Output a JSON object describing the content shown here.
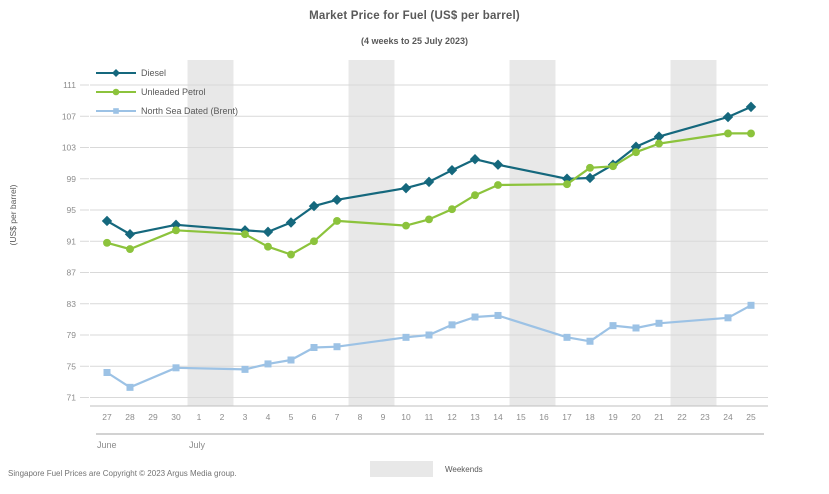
{
  "header": {
    "title": "Market Price for Fuel (US$ per barrel)",
    "subtitle": "(4 weeks to 25 July 2023)"
  },
  "footer": {
    "copyright": "Singapore Fuel Prices are Copyright © 2023 Argus Media group.",
    "weekend_legend_label": "Weekends"
  },
  "chart_data": {
    "type": "line",
    "title": "Market Price for Fuel (US$ per barrel)",
    "subtitle": "(4 weeks to 25 July 2023)",
    "xlabel": "",
    "ylabel": "(US$ per barrel)",
    "ylim": [
      71,
      111
    ],
    "ytick_step": 4,
    "yticks": [
      71,
      75,
      79,
      83,
      87,
      91,
      95,
      99,
      103,
      107,
      111
    ],
    "grid": true,
    "legend_position": "top-left",
    "categories": [
      "27",
      "28",
      "29",
      "30",
      "1",
      "2",
      "3",
      "4",
      "5",
      "6",
      "7",
      "8",
      "9",
      "10",
      "11",
      "12",
      "13",
      "14",
      "15",
      "16",
      "17",
      "18",
      "19",
      "20",
      "21",
      "22",
      "23",
      "24",
      "25"
    ],
    "month_groups": [
      {
        "label": "June",
        "start_index": 0,
        "end_index": 3
      },
      {
        "label": "July",
        "start_index": 4,
        "end_index": 28
      }
    ],
    "weekend_bands": [
      [
        4,
        5
      ],
      [
        11,
        12
      ],
      [
        18,
        19
      ],
      [
        25,
        26
      ]
    ],
    "weekend_color": "#e8e8e8",
    "gridline_color": "#d9d9d9",
    "axis_line_color": "#bfbfbf",
    "month_line_color": "#a6a6a6",
    "tick_label_color": "#8c8c8c",
    "series": [
      {
        "name": "Diesel",
        "color": "#15687d",
        "marker": "diamond",
        "values": [
          93.6,
          91.9,
          null,
          93.1,
          null,
          null,
          92.4,
          92.2,
          93.4,
          95.5,
          96.3,
          null,
          null,
          97.8,
          98.6,
          100.1,
          101.5,
          100.8,
          null,
          null,
          99.0,
          99.1,
          100.8,
          103.1,
          104.4,
          null,
          null,
          106.9,
          108.2
        ]
      },
      {
        "name": "Unleaded Petrol",
        "color": "#8cc33c",
        "marker": "circle",
        "values": [
          90.8,
          90.0,
          null,
          92.4,
          null,
          null,
          91.9,
          90.3,
          89.3,
          91.0,
          93.6,
          null,
          null,
          93.0,
          93.8,
          95.1,
          96.9,
          98.2,
          null,
          null,
          98.3,
          100.4,
          100.6,
          102.4,
          103.5,
          null,
          null,
          104.8,
          104.8
        ]
      },
      {
        "name": "North Sea Dated (Brent)",
        "color": "#9cc2e5",
        "marker": "square",
        "values": [
          74.2,
          72.3,
          null,
          74.8,
          null,
          null,
          74.6,
          75.3,
          75.8,
          77.4,
          77.5,
          null,
          null,
          78.7,
          79.0,
          80.3,
          81.3,
          81.5,
          null,
          null,
          78.7,
          78.2,
          80.2,
          79.9,
          80.5,
          null,
          null,
          81.2,
          82.8
        ]
      }
    ]
  }
}
